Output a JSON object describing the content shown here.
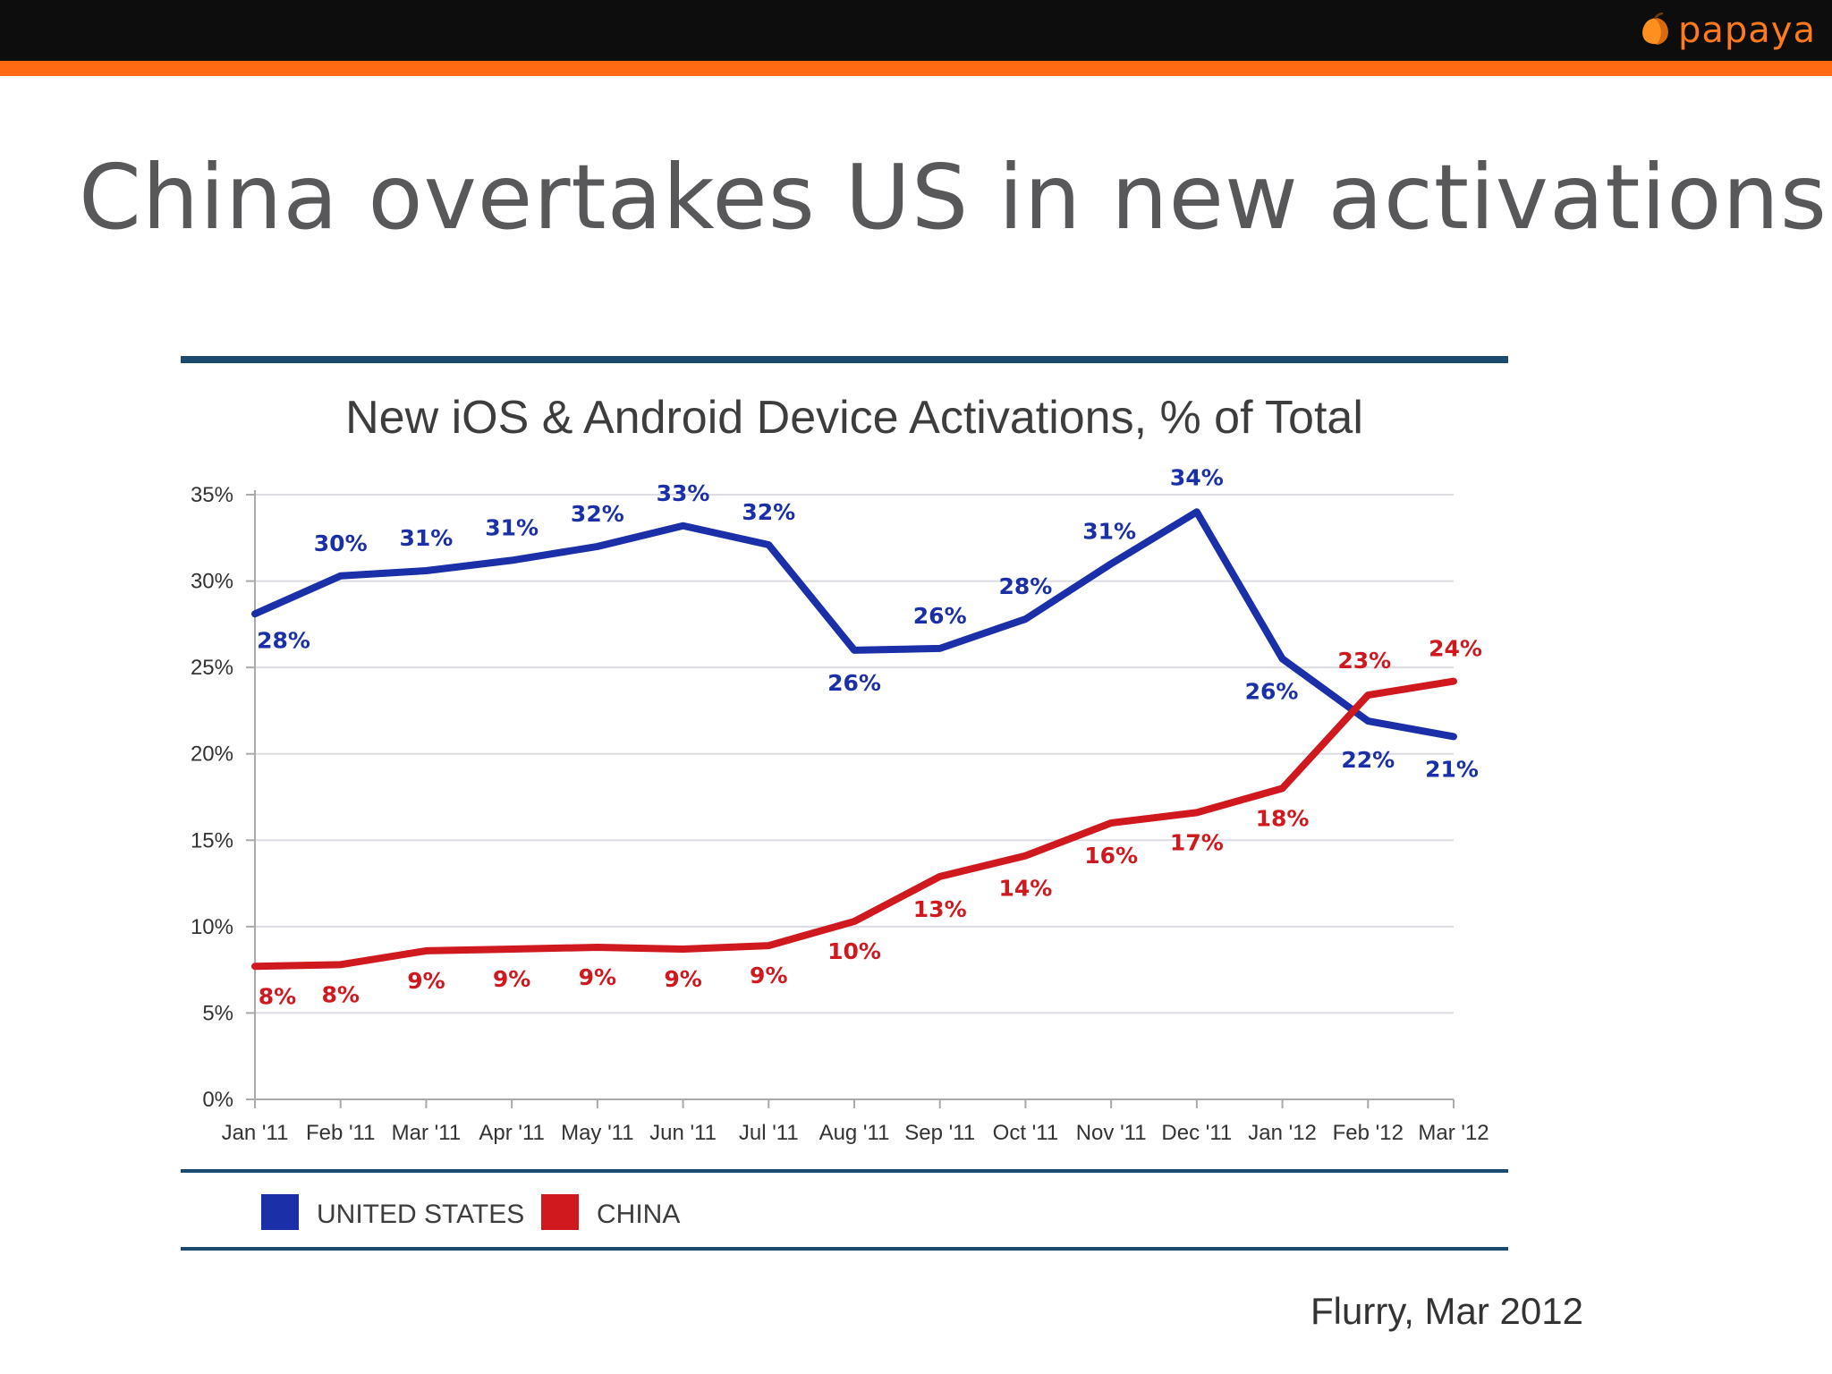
{
  "header": {
    "logo_text": "papaya",
    "brand_color": "#ff6a13"
  },
  "slide": {
    "title": "China overtakes US in new activations",
    "source": "Flurry, Mar 2012"
  },
  "chart_data": {
    "type": "line",
    "title": "New iOS & Android Device Activations, % of Total",
    "categories": [
      "Jan '11",
      "Feb '11",
      "Mar '11",
      "Apr '11",
      "May '11",
      "Jun '11",
      "Jul '11",
      "Aug '11",
      "Sep '11",
      "Oct '11",
      "Nov '11",
      "Dec '11",
      "Jan '12",
      "Feb '12",
      "Mar '12"
    ],
    "ylim": [
      0,
      35
    ],
    "yticks": [
      "0%",
      "5%",
      "10%",
      "15%",
      "20%",
      "25%",
      "30%",
      "35%"
    ],
    "grid": true,
    "series": [
      {
        "name": "UNITED STATES",
        "color": "#1a2fa8",
        "values": [
          28.1,
          30.3,
          30.6,
          31.2,
          32.0,
          33.2,
          32.1,
          26.0,
          26.1,
          27.8,
          31.0,
          34.0,
          25.5,
          21.9,
          21.0
        ],
        "labels": [
          "28%",
          "30%",
          "31%",
          "31%",
          "32%",
          "33%",
          "32%",
          "26%",
          "26%",
          "28%",
          "31%",
          "34%",
          "26%",
          "22%",
          "21%"
        ]
      },
      {
        "name": "CHINA",
        "color": "#d0181f",
        "values": [
          7.7,
          7.8,
          8.6,
          8.7,
          8.8,
          8.7,
          8.9,
          10.3,
          12.9,
          14.1,
          16.0,
          16.6,
          18.0,
          23.4,
          24.2
        ],
        "labels": [
          "8%",
          "8%",
          "9%",
          "9%",
          "9%",
          "9%",
          "9%",
          "10%",
          "13%",
          "14%",
          "16%",
          "17%",
          "18%",
          "23%",
          "24%"
        ]
      }
    ],
    "legend": [
      "UNITED STATES",
      "CHINA"
    ]
  }
}
